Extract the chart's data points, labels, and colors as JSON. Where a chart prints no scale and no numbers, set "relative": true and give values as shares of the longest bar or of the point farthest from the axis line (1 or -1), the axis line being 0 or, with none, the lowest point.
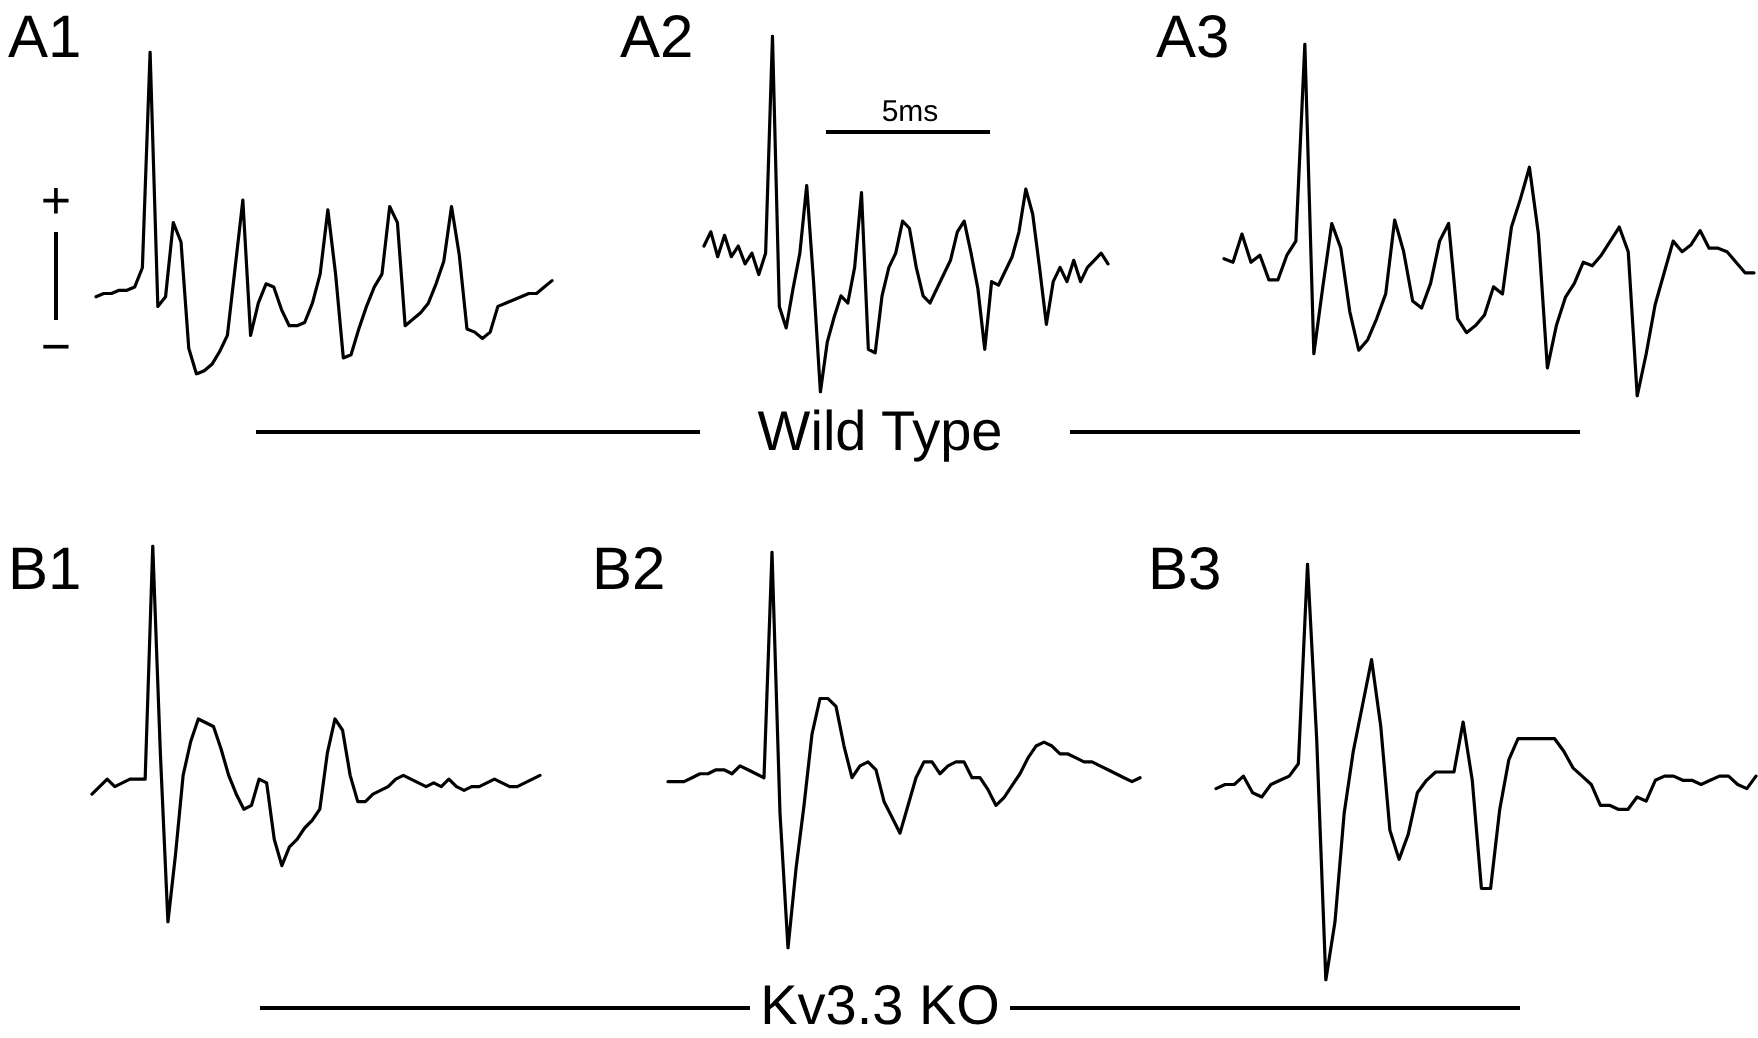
{
  "chart_data": [
    {
      "type": "line",
      "title": "A1",
      "relative": true,
      "annotations": [
        "+",
        "−"
      ],
      "categories": [
        null,
        null,
        null,
        null,
        null,
        null,
        null,
        null,
        null,
        null,
        null,
        null,
        null,
        null,
        null,
        null,
        null,
        null,
        null,
        null,
        null,
        null,
        null,
        null,
        null,
        null,
        null,
        null,
        null,
        null,
        null,
        null,
        null,
        null,
        null,
        null,
        null,
        null,
        null,
        null,
        null,
        null,
        null,
        null,
        null,
        null,
        null,
        null,
        null,
        null,
        null,
        null,
        null,
        null,
        null,
        null,
        null,
        null,
        null,
        null
      ],
      "series": [
        {
          "color": "#000000",
          "values": [
            0.24,
            0.25,
            0.25,
            0.26,
            0.26,
            0.27,
            0.33,
            1,
            0.21,
            0.24,
            0.47,
            0.41,
            0.08,
            0,
            0.01,
            0.03,
            0.07,
            0.12,
            0.33,
            0.54,
            0.12,
            0.22,
            0.28,
            0.27,
            0.2,
            0.15,
            0.15,
            0.16,
            0.22,
            0.31,
            0.51,
            0.31,
            0.05,
            0.06,
            0.14,
            0.21,
            0.27,
            0.31,
            0.52,
            0.47,
            0.15,
            0.17,
            0.19,
            0.22,
            0.28,
            0.35,
            0.52,
            0.37,
            0.14,
            0.13,
            0.11,
            0.13,
            0.21,
            0.22,
            0.23,
            0.24,
            0.25,
            0.25,
            0.27,
            0.29
          ]
        }
      ]
    },
    {
      "type": "line",
      "title": "A2",
      "relative": true,
      "annotations": [
        "5ms",
        "Wild Type"
      ],
      "categories": [
        null,
        null,
        null,
        null,
        null,
        null,
        null,
        null,
        null,
        null,
        null,
        null,
        null,
        null,
        null,
        null,
        null,
        null,
        null,
        null,
        null,
        null,
        null,
        null,
        null,
        null,
        null,
        null,
        null,
        null,
        null,
        null,
        null,
        null,
        null,
        null,
        null,
        null,
        null,
        null,
        null,
        null,
        null,
        null,
        null,
        null,
        null,
        null,
        null,
        null,
        null,
        null,
        null,
        null,
        null,
        null,
        null,
        null,
        null,
        null
      ],
      "series": [
        {
          "color": "#000000",
          "values": [
            0.41,
            0.45,
            0.38,
            0.44,
            0.38,
            0.41,
            0.36,
            0.39,
            0.33,
            0.39,
            1,
            0.24,
            0.18,
            0.29,
            0.39,
            0.58,
            0.31,
            0,
            0.14,
            0.21,
            0.27,
            0.25,
            0.35,
            0.56,
            0.12,
            0.11,
            0.27,
            0.35,
            0.39,
            0.48,
            0.46,
            0.35,
            0.27,
            0.25,
            0.29,
            0.33,
            0.37,
            0.45,
            0.48,
            0.39,
            0.29,
            0.12,
            0.31,
            0.3,
            0.34,
            0.38,
            0.45,
            0.57,
            0.5,
            0.35,
            0.19,
            0.31,
            0.35,
            0.31,
            0.37,
            0.31,
            0.35,
            0.37,
            0.39,
            0.36
          ]
        }
      ]
    },
    {
      "type": "line",
      "title": "A3",
      "relative": true,
      "categories": [
        null,
        null,
        null,
        null,
        null,
        null,
        null,
        null,
        null,
        null,
        null,
        null,
        null,
        null,
        null,
        null,
        null,
        null,
        null,
        null,
        null,
        null,
        null,
        null,
        null,
        null,
        null,
        null,
        null,
        null,
        null,
        null,
        null,
        null,
        null,
        null,
        null,
        null,
        null,
        null,
        null,
        null,
        null,
        null,
        null,
        null,
        null,
        null,
        null,
        null,
        null,
        null,
        null,
        null,
        null,
        null,
        null,
        null,
        null,
        null
      ],
      "series": [
        {
          "color": "#000000",
          "values": [
            0.39,
            0.38,
            0.46,
            0.38,
            0.4,
            0.33,
            0.33,
            0.4,
            0.44,
            1,
            0.12,
            0.31,
            0.49,
            0.42,
            0.24,
            0.13,
            0.16,
            0.22,
            0.29,
            0.5,
            0.41,
            0.27,
            0.25,
            0.32,
            0.44,
            0.49,
            0.22,
            0.18,
            0.2,
            0.23,
            0.31,
            0.29,
            0.48,
            0.56,
            0.65,
            0.46,
            0.08,
            0.2,
            0.28,
            0.32,
            0.38,
            0.37,
            0.4,
            0.44,
            0.48,
            0.41,
            0,
            0.12,
            0.26,
            0.35,
            0.44,
            0.41,
            0.43,
            0.47,
            0.42,
            0.42,
            0.41,
            0.38,
            0.35,
            0.35
          ]
        }
      ]
    },
    {
      "type": "line",
      "title": "B1",
      "relative": true,
      "categories": [
        null,
        null,
        null,
        null,
        null,
        null,
        null,
        null,
        null,
        null,
        null,
        null,
        null,
        null,
        null,
        null,
        null,
        null,
        null,
        null,
        null,
        null,
        null,
        null,
        null,
        null,
        null,
        null,
        null,
        null,
        null,
        null,
        null,
        null,
        null,
        null,
        null,
        null,
        null,
        null,
        null,
        null,
        null,
        null,
        null,
        null,
        null,
        null,
        null,
        null,
        null,
        null,
        null,
        null,
        null,
        null,
        null,
        null,
        null,
        null
      ],
      "series": [
        {
          "color": "#000000",
          "values": [
            0.34,
            0.36,
            0.38,
            0.36,
            0.37,
            0.38,
            0.38,
            0.38,
            1,
            0.45,
            0,
            0.18,
            0.39,
            0.48,
            0.54,
            0.53,
            0.52,
            0.46,
            0.39,
            0.34,
            0.3,
            0.31,
            0.38,
            0.37,
            0.22,
            0.15,
            0.2,
            0.22,
            0.25,
            0.27,
            0.3,
            0.45,
            0.54,
            0.51,
            0.39,
            0.32,
            0.32,
            0.34,
            0.35,
            0.36,
            0.38,
            0.39,
            0.38,
            0.37,
            0.36,
            0.37,
            0.36,
            0.38,
            0.36,
            0.35,
            0.36,
            0.36,
            0.37,
            0.38,
            0.37,
            0.36,
            0.36,
            0.37,
            0.38,
            0.39
          ]
        }
      ]
    },
    {
      "type": "line",
      "title": "B2",
      "relative": true,
      "annotations": [
        "Kv3.3 KO"
      ],
      "categories": [
        null,
        null,
        null,
        null,
        null,
        null,
        null,
        null,
        null,
        null,
        null,
        null,
        null,
        null,
        null,
        null,
        null,
        null,
        null,
        null,
        null,
        null,
        null,
        null,
        null,
        null,
        null,
        null,
        null,
        null,
        null,
        null,
        null,
        null,
        null,
        null,
        null,
        null,
        null,
        null,
        null,
        null,
        null,
        null,
        null,
        null,
        null,
        null,
        null,
        null,
        null,
        null,
        null,
        null,
        null,
        null,
        null,
        null,
        null,
        null
      ],
      "series": [
        {
          "color": "#000000",
          "values": [
            0.42,
            0.42,
            0.42,
            0.43,
            0.44,
            0.44,
            0.45,
            0.45,
            0.44,
            0.46,
            0.45,
            0.44,
            0.43,
            1,
            0.34,
            0,
            0.2,
            0.36,
            0.54,
            0.63,
            0.63,
            0.61,
            0.51,
            0.43,
            0.46,
            0.47,
            0.45,
            0.37,
            0.33,
            0.29,
            0.36,
            0.43,
            0.47,
            0.47,
            0.44,
            0.46,
            0.47,
            0.47,
            0.43,
            0.43,
            0.4,
            0.36,
            0.38,
            0.41,
            0.44,
            0.48,
            0.51,
            0.52,
            0.51,
            0.49,
            0.49,
            0.48,
            0.47,
            0.47,
            0.46,
            0.45,
            0.44,
            0.43,
            0.42,
            0.43
          ]
        }
      ]
    },
    {
      "type": "line",
      "title": "B3",
      "relative": true,
      "categories": [
        null,
        null,
        null,
        null,
        null,
        null,
        null,
        null,
        null,
        null,
        null,
        null,
        null,
        null,
        null,
        null,
        null,
        null,
        null,
        null,
        null,
        null,
        null,
        null,
        null,
        null,
        null,
        null,
        null,
        null,
        null,
        null,
        null,
        null,
        null,
        null,
        null,
        null,
        null,
        null,
        null,
        null,
        null,
        null,
        null,
        null,
        null,
        null,
        null,
        null,
        null,
        null,
        null,
        null,
        null,
        null,
        null,
        null,
        null,
        null
      ],
      "series": [
        {
          "color": "#000000",
          "values": [
            0.46,
            0.47,
            0.47,
            0.49,
            0.45,
            0.44,
            0.47,
            0.48,
            0.49,
            0.52,
            1,
            0.58,
            0,
            0.14,
            0.4,
            0.55,
            0.66,
            0.77,
            0.61,
            0.36,
            0.29,
            0.35,
            0.45,
            0.48,
            0.5,
            0.5,
            0.5,
            0.62,
            0.48,
            0.22,
            0.22,
            0.41,
            0.53,
            0.58,
            0.58,
            0.58,
            0.58,
            0.58,
            0.55,
            0.51,
            0.49,
            0.47,
            0.42,
            0.42,
            0.41,
            0.41,
            0.44,
            0.43,
            0.48,
            0.49,
            0.49,
            0.48,
            0.48,
            0.47,
            0.48,
            0.49,
            0.49,
            0.47,
            0.46,
            0.49
          ]
        }
      ]
    }
  ]
}
